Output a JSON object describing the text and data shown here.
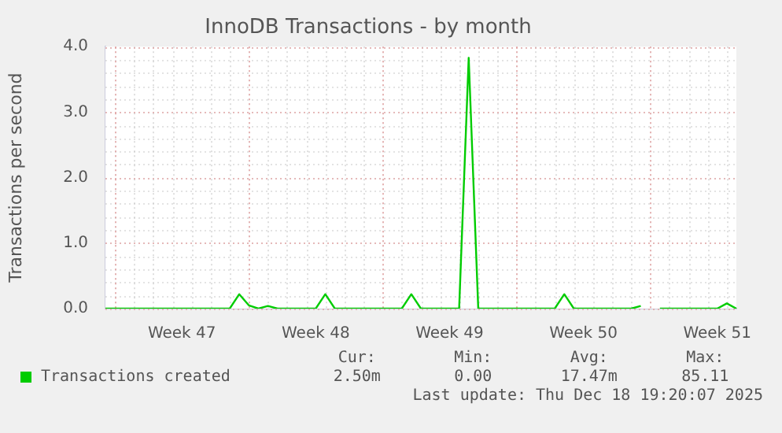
{
  "chart_data": {
    "type": "line",
    "title": "InnoDB Transactions - by month",
    "ylabel": "Transactions per second",
    "categories": [
      null,
      null,
      null,
      null,
      null,
      null,
      null,
      null,
      "Week 47",
      null,
      null,
      null,
      null,
      null,
      null,
      null,
      null,
      null,
      null,
      null,
      null,
      null,
      "Week 48",
      null,
      null,
      null,
      null,
      null,
      null,
      null,
      null,
      null,
      null,
      null,
      null,
      null,
      "Week 49",
      null,
      null,
      null,
      null,
      null,
      null,
      null,
      null,
      null,
      null,
      null,
      null,
      null,
      "Week 50",
      null,
      null,
      null,
      null,
      null,
      null,
      null,
      null,
      null,
      null,
      null,
      null,
      null,
      "Week 51",
      null,
      null
    ],
    "series": [
      {
        "name": "Transactions created",
        "color": "#00cc00",
        "values": [
          0,
          0,
          0,
          0,
          0,
          0,
          0,
          0,
          0,
          0,
          0,
          0,
          0,
          0,
          0.22,
          0.05,
          0,
          0.04,
          0,
          0,
          0,
          0,
          0,
          0.22,
          0,
          0,
          0,
          0,
          0,
          0,
          0,
          0,
          0.22,
          0,
          0,
          0,
          0,
          0,
          3.83,
          0,
          0,
          0,
          0,
          0,
          0,
          0,
          0,
          0,
          0.22,
          0,
          0,
          0,
          0,
          0,
          0,
          0,
          0.04,
          null,
          0,
          0,
          0,
          0,
          0,
          0,
          0,
          0.08,
          0
        ]
      }
    ],
    "ylim": [
      0,
      4
    ],
    "yticks": [
      {
        "value": 0,
        "label": "0.0"
      },
      {
        "value": 1,
        "label": "1.0"
      },
      {
        "value": 2,
        "label": "2.0"
      },
      {
        "value": 3,
        "label": "3.0"
      },
      {
        "value": 4,
        "label": "4.0"
      }
    ],
    "grid": true,
    "legend": "bottom left",
    "marker": "none",
    "annotations": [
      "Cur:",
      "Min:",
      "Avg:",
      "Max:",
      "2.50m",
      "0.00",
      "17.47m",
      "85.11",
      "Last update: Thu Dec 18 19:20:07 2025"
    ]
  }
}
